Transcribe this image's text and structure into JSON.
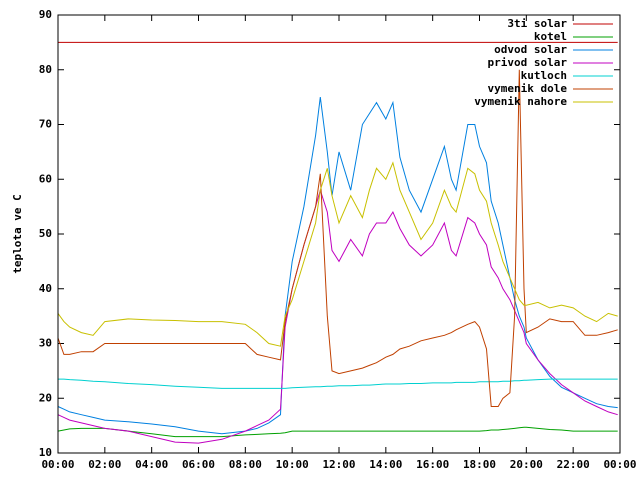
{
  "chart_data": {
    "type": "line",
    "ylabel": "teplota ve C",
    "x": [
      0,
      0.25,
      0.5,
      1,
      1.5,
      2,
      3,
      4,
      5,
      6,
      7,
      8,
      8.5,
      9,
      9.5,
      9.7,
      10,
      10.5,
      11,
      11.2,
      11.5,
      11.7,
      12,
      12.5,
      13,
      13.3,
      13.6,
      14,
      14.3,
      14.6,
      15,
      15.5,
      16,
      16.5,
      16.8,
      17,
      17.5,
      17.8,
      18,
      18.3,
      18.5,
      18.8,
      19,
      19.3,
      19.5,
      19.7,
      19.9,
      20,
      20.5,
      21,
      21.5,
      22,
      22.5,
      23,
      23.5,
      23.9
    ],
    "series": [
      {
        "name": "3ti solar",
        "color": "#c00000",
        "values": [
          85,
          85,
          85,
          85,
          85,
          85,
          85,
          85,
          85,
          85,
          85,
          85,
          85,
          85,
          85,
          85,
          85,
          85,
          85,
          85,
          85,
          85,
          85,
          85,
          85,
          85,
          85,
          85,
          85,
          85,
          85,
          85,
          85,
          85,
          85,
          85,
          85,
          85,
          85,
          85,
          85,
          85,
          85,
          85,
          85,
          85,
          85,
          85,
          85,
          85,
          85,
          85,
          85,
          85,
          85,
          85
        ]
      },
      {
        "name": "kotel",
        "color": "#00a000",
        "values": [
          14,
          14.2,
          14.4,
          14.5,
          14.5,
          14.5,
          14,
          13.5,
          13,
          13,
          13,
          13.3,
          13.4,
          13.5,
          13.6,
          13.7,
          14,
          14,
          14,
          14,
          14,
          14,
          14,
          14,
          14,
          14,
          14,
          14,
          14,
          14,
          14,
          14,
          14,
          14,
          14,
          14,
          14,
          14,
          14,
          14.1,
          14.2,
          14.2,
          14.3,
          14.4,
          14.5,
          14.6,
          14.7,
          14.7,
          14.5,
          14.3,
          14.2,
          14,
          14,
          14,
          14,
          14
        ]
      },
      {
        "name": "odvod solar",
        "color": "#0080e0",
        "values": [
          18.5,
          18,
          17.5,
          17,
          16.5,
          16,
          15.7,
          15.3,
          14.8,
          14,
          13.5,
          14,
          14.5,
          15.5,
          17,
          35,
          45,
          55,
          68,
          75,
          65,
          57,
          65,
          58,
          70,
          72,
          74,
          71,
          74,
          64,
          58,
          54,
          60,
          66,
          60,
          58,
          70,
          70,
          66,
          63,
          56,
          52,
          48,
          42,
          38,
          35,
          33,
          31,
          27,
          24,
          22,
          21,
          20,
          19,
          18.5,
          18.3
        ]
      },
      {
        "name": "privod solar",
        "color": "#c000c0",
        "values": [
          17,
          16.5,
          16,
          15.5,
          15,
          14.5,
          14,
          13,
          12,
          11.8,
          12.5,
          14,
          15,
          16,
          18,
          33,
          40,
          48,
          55,
          58,
          54,
          47,
          45,
          49,
          46,
          50,
          52,
          52,
          54,
          51,
          48,
          46,
          48,
          52,
          47,
          46,
          53,
          52,
          50,
          48,
          44,
          42,
          40,
          38,
          36,
          34,
          32,
          30,
          27,
          24.5,
          22.5,
          21,
          19.5,
          18.5,
          17.5,
          17
        ]
      },
      {
        "name": "kutloch",
        "color": "#00d0d0",
        "values": [
          23.5,
          23.5,
          23.4,
          23.3,
          23.1,
          23,
          22.7,
          22.5,
          22.2,
          22,
          21.8,
          21.8,
          21.8,
          21.8,
          21.8,
          21.8,
          21.9,
          22,
          22.1,
          22.1,
          22.2,
          22.2,
          22.3,
          22.3,
          22.4,
          22.4,
          22.5,
          22.6,
          22.6,
          22.6,
          22.7,
          22.7,
          22.8,
          22.8,
          22.8,
          22.9,
          22.9,
          22.9,
          23,
          23,
          23,
          23,
          23.1,
          23.1,
          23.2,
          23.2,
          23.3,
          23.3,
          23.4,
          23.5,
          23.5,
          23.5,
          23.5,
          23.5,
          23.5,
          23.5
        ]
      },
      {
        "name": "vymenik dole",
        "color": "#c04000",
        "values": [
          31,
          28,
          28,
          28.5,
          28.5,
          30,
          30,
          30,
          30,
          30,
          30,
          30,
          28,
          27.5,
          27,
          34,
          40,
          48,
          55,
          61,
          35,
          25,
          24.5,
          25,
          25.5,
          26,
          26.5,
          27.5,
          28,
          29,
          29.5,
          30.5,
          31,
          31.5,
          32,
          32.5,
          33.5,
          34,
          33,
          29,
          18.5,
          18.5,
          20,
          21,
          35,
          80,
          40,
          32,
          33,
          34.5,
          34,
          34,
          31.5,
          31.5,
          32,
          32.5
        ]
      },
      {
        "name": "vymenik nahore",
        "color": "#c8c000",
        "values": [
          35.5,
          34,
          33,
          32,
          31.5,
          34,
          34.5,
          34.3,
          34.2,
          34,
          34,
          33.5,
          32,
          30,
          29.5,
          35,
          38,
          45,
          52,
          58,
          62,
          57,
          52,
          57,
          53,
          58,
          62,
          60,
          63,
          58,
          54,
          49,
          52,
          58,
          55,
          54,
          62,
          61,
          58,
          56,
          52,
          48,
          45,
          42,
          40,
          38,
          37,
          37,
          37.5,
          36.5,
          37,
          36.5,
          35,
          34,
          35.5,
          35
        ]
      }
    ],
    "xlim": [
      0,
      24
    ],
    "xticks": [
      {
        "value": 0,
        "label": "00:00"
      },
      {
        "value": 2,
        "label": "02:00"
      },
      {
        "value": 4,
        "label": "04:00"
      },
      {
        "value": 6,
        "label": "06:00"
      },
      {
        "value": 8,
        "label": "08:00"
      },
      {
        "value": 10,
        "label": "10:00"
      },
      {
        "value": 12,
        "label": "12:00"
      },
      {
        "value": 14,
        "label": "14:00"
      },
      {
        "value": 16,
        "label": "16:00"
      },
      {
        "value": 18,
        "label": "18:00"
      },
      {
        "value": 20,
        "label": "20:00"
      },
      {
        "value": 22,
        "label": "22:00"
      },
      {
        "value": 24,
        "label": "00:00"
      }
    ],
    "ylim": [
      10,
      90
    ],
    "yticks": [
      10,
      20,
      30,
      40,
      50,
      60,
      70,
      80,
      90
    ],
    "legend": "top-right"
  }
}
